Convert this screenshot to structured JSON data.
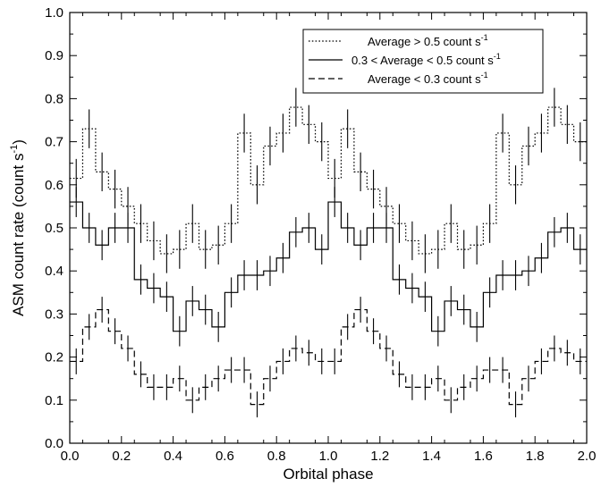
{
  "chart_data": {
    "type": "line",
    "xlabel": "Orbital phase",
    "ylabel": "ASM count rate (count s",
    "ylabel_sup": "-1",
    "ylabel_close": ")",
    "xlim": [
      0.0,
      2.0
    ],
    "ylim": [
      0.0,
      1.0
    ],
    "x_ticks": [
      "0.0",
      "0.2",
      "0.4",
      "0.6",
      "0.8",
      "1.0",
      "1.2",
      "1.4",
      "1.6",
      "1.8",
      "2.0"
    ],
    "y_ticks": [
      "0.0",
      "0.1",
      "0.2",
      "0.3",
      "0.4",
      "0.5",
      "0.6",
      "0.7",
      "0.8",
      "0.9",
      "1.0"
    ],
    "grid": false,
    "legend_position": "top-right",
    "bin_width": 0.05,
    "series": [
      {
        "name": "Average > 0.5 count s",
        "name_sup": "-1",
        "dash": "dotted",
        "x": [
          0.025,
          0.075,
          0.125,
          0.175,
          0.225,
          0.275,
          0.325,
          0.375,
          0.425,
          0.475,
          0.525,
          0.575,
          0.625,
          0.675,
          0.725,
          0.775,
          0.825,
          0.875,
          0.925,
          0.975,
          1.025,
          1.075,
          1.125,
          1.175,
          1.225,
          1.275,
          1.325,
          1.375,
          1.425,
          1.475,
          1.525,
          1.575,
          1.625,
          1.675,
          1.725,
          1.775,
          1.825,
          1.875,
          1.925,
          1.975
        ],
        "values": [
          0.615,
          0.73,
          0.63,
          0.59,
          0.55,
          0.51,
          0.47,
          0.44,
          0.45,
          0.51,
          0.45,
          0.46,
          0.51,
          0.72,
          0.6,
          0.69,
          0.72,
          0.78,
          0.74,
          0.7,
          0.615,
          0.73,
          0.63,
          0.59,
          0.55,
          0.51,
          0.47,
          0.44,
          0.45,
          0.51,
          0.45,
          0.46,
          0.51,
          0.72,
          0.6,
          0.69,
          0.72,
          0.78,
          0.74,
          0.7
        ],
        "errors": [
          0.045,
          0.045,
          0.045,
          0.045,
          0.045,
          0.045,
          0.045,
          0.045,
          0.045,
          0.045,
          0.045,
          0.045,
          0.045,
          0.045,
          0.045,
          0.045,
          0.045,
          0.045,
          0.045,
          0.045,
          0.045,
          0.045,
          0.045,
          0.045,
          0.045,
          0.045,
          0.045,
          0.045,
          0.045,
          0.045,
          0.045,
          0.045,
          0.045,
          0.045,
          0.045,
          0.045,
          0.045,
          0.045,
          0.045,
          0.045
        ]
      },
      {
        "name": "0.3 < Average < 0.5 count s",
        "name_sup": "-1",
        "dash": "solid",
        "x": [
          0.025,
          0.075,
          0.125,
          0.175,
          0.225,
          0.275,
          0.325,
          0.375,
          0.425,
          0.475,
          0.525,
          0.575,
          0.625,
          0.675,
          0.725,
          0.775,
          0.825,
          0.875,
          0.925,
          0.975,
          1.025,
          1.075,
          1.125,
          1.175,
          1.225,
          1.275,
          1.325,
          1.375,
          1.425,
          1.475,
          1.525,
          1.575,
          1.625,
          1.675,
          1.725,
          1.775,
          1.825,
          1.875,
          1.925,
          1.975
        ],
        "values": [
          0.56,
          0.5,
          0.46,
          0.5,
          0.5,
          0.38,
          0.36,
          0.34,
          0.26,
          0.33,
          0.31,
          0.27,
          0.35,
          0.39,
          0.39,
          0.4,
          0.43,
          0.49,
          0.5,
          0.45,
          0.56,
          0.5,
          0.46,
          0.5,
          0.5,
          0.38,
          0.36,
          0.34,
          0.26,
          0.33,
          0.31,
          0.27,
          0.35,
          0.39,
          0.39,
          0.4,
          0.43,
          0.49,
          0.5,
          0.45
        ],
        "errors": [
          0.035,
          0.035,
          0.035,
          0.035,
          0.035,
          0.035,
          0.035,
          0.035,
          0.035,
          0.035,
          0.035,
          0.035,
          0.035,
          0.035,
          0.035,
          0.035,
          0.035,
          0.035,
          0.035,
          0.035,
          0.035,
          0.035,
          0.035,
          0.035,
          0.035,
          0.035,
          0.035,
          0.035,
          0.035,
          0.035,
          0.035,
          0.035,
          0.035,
          0.035,
          0.035,
          0.035,
          0.035,
          0.035,
          0.035,
          0.035
        ]
      },
      {
        "name": "Average < 0.3 count s",
        "name_sup": "-1",
        "dash": "dashed",
        "x": [
          0.025,
          0.075,
          0.125,
          0.175,
          0.225,
          0.275,
          0.325,
          0.375,
          0.425,
          0.475,
          0.525,
          0.575,
          0.625,
          0.675,
          0.725,
          0.775,
          0.825,
          0.875,
          0.925,
          0.975,
          1.025,
          1.075,
          1.125,
          1.175,
          1.225,
          1.275,
          1.325,
          1.375,
          1.425,
          1.475,
          1.525,
          1.575,
          1.625,
          1.675,
          1.725,
          1.775,
          1.825,
          1.875,
          1.925,
          1.975
        ],
        "values": [
          0.19,
          0.27,
          0.31,
          0.26,
          0.22,
          0.16,
          0.13,
          0.13,
          0.15,
          0.1,
          0.13,
          0.15,
          0.17,
          0.17,
          0.09,
          0.15,
          0.19,
          0.22,
          0.21,
          0.19,
          0.19,
          0.27,
          0.31,
          0.26,
          0.22,
          0.16,
          0.13,
          0.13,
          0.15,
          0.1,
          0.13,
          0.15,
          0.17,
          0.17,
          0.09,
          0.15,
          0.19,
          0.22,
          0.21,
          0.19
        ],
        "errors": [
          0.03,
          0.03,
          0.03,
          0.03,
          0.03,
          0.03,
          0.03,
          0.03,
          0.03,
          0.03,
          0.03,
          0.03,
          0.03,
          0.03,
          0.03,
          0.03,
          0.03,
          0.03,
          0.03,
          0.03,
          0.03,
          0.03,
          0.03,
          0.03,
          0.03,
          0.03,
          0.03,
          0.03,
          0.03,
          0.03,
          0.03,
          0.03,
          0.03,
          0.03,
          0.03,
          0.03,
          0.03,
          0.03,
          0.03,
          0.03
        ]
      }
    ]
  }
}
